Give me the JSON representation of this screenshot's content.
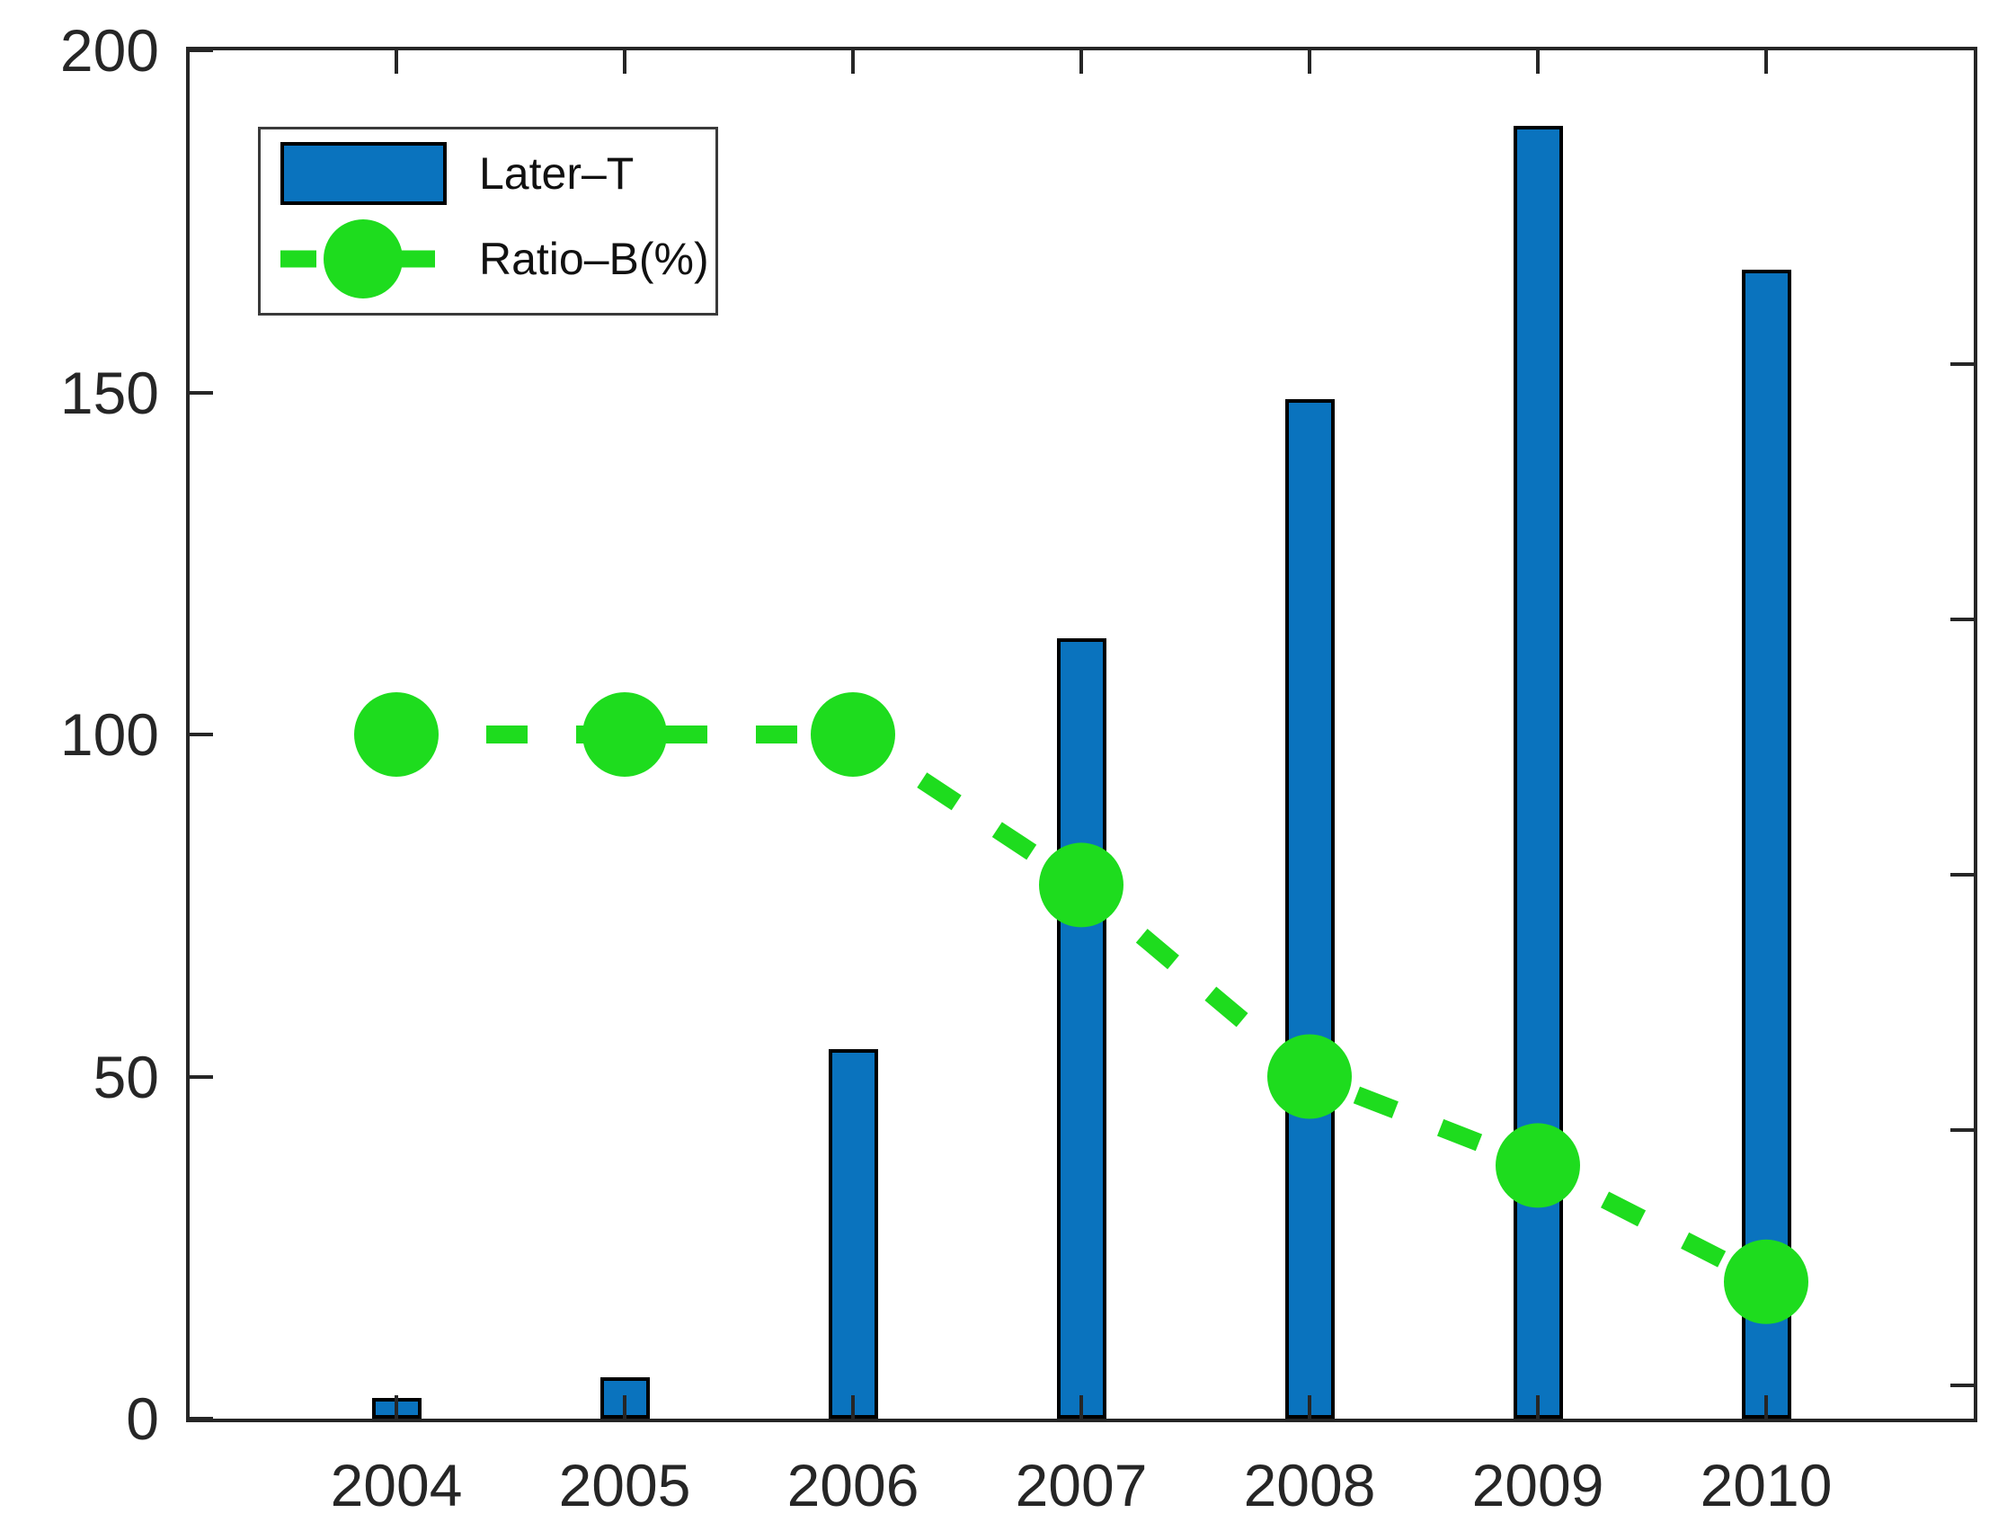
{
  "chart_data": {
    "type": "bar",
    "subtype": "bar-line-combo",
    "categories": [
      "2004",
      "2005",
      "2006",
      "2007",
      "2008",
      "2009",
      "2010"
    ],
    "series": [
      {
        "name": "Later–T",
        "type": "bar",
        "color": "#0a73be",
        "edge_color": "#000000",
        "values": [
          3,
          6,
          54,
          114,
          149,
          189,
          168
        ]
      },
      {
        "name": "Ratio–B(%)",
        "type": "line",
        "line_style": "dashed",
        "marker": "circle",
        "color": "#1edc1e",
        "values": [
          100,
          100,
          100,
          78,
          50,
          37,
          20
        ]
      }
    ],
    "title": "",
    "xlabel": "",
    "ylabel": "",
    "ylim": [
      0,
      200
    ],
    "yticks": [
      0,
      50,
      100,
      150,
      200
    ],
    "grid": false,
    "legend_position": "top-left",
    "axis_color": "#262626",
    "box": true
  },
  "legend": {
    "items": [
      {
        "label": "Later–T"
      },
      {
        "label": "Ratio–B(%)"
      }
    ]
  }
}
